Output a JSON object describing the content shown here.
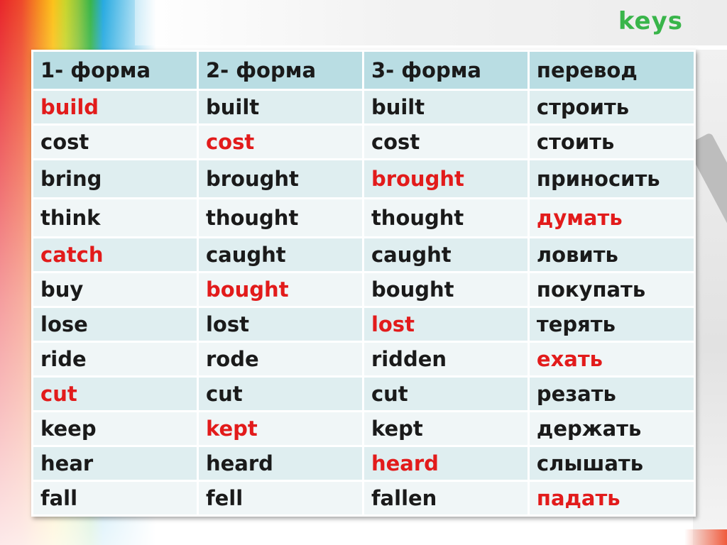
{
  "keys_label": "keys",
  "colors": {
    "highlight": "#e21b1b",
    "keys_label": "#39b54a",
    "header_bg": "#b9dde3"
  },
  "table": {
    "headers": [
      "1- форма",
      "2- форма",
      "3- форма",
      "перевод"
    ],
    "rows": [
      {
        "cells": [
          "build",
          "built",
          "built",
          "строить"
        ],
        "highlight_col": 0
      },
      {
        "cells": [
          "cost",
          "cost",
          "cost",
          "стоить"
        ],
        "highlight_col": 1
      },
      {
        "cells": [
          "bring",
          "brought",
          "brought",
          "приносить"
        ],
        "highlight_col": 2
      },
      {
        "cells": [
          "think",
          "thought",
          "thought",
          "думать"
        ],
        "highlight_col": 3
      },
      {
        "cells": [
          "catch",
          "caught",
          "caught",
          "ловить"
        ],
        "highlight_col": 0
      },
      {
        "cells": [
          "buy",
          "bought",
          "bought",
          "покупать"
        ],
        "highlight_col": 1
      },
      {
        "cells": [
          "lose",
          "lost",
          "lost",
          "терять"
        ],
        "highlight_col": 2
      },
      {
        "cells": [
          "ride",
          "rode",
          "ridden",
          "ехать"
        ],
        "highlight_col": 3
      },
      {
        "cells": [
          "cut",
          "cut",
          "cut",
          "резать"
        ],
        "highlight_col": 0
      },
      {
        "cells": [
          "keep",
          "kept",
          "kept",
          "держать"
        ],
        "highlight_col": 1
      },
      {
        "cells": [
          "hear",
          "heard",
          "heard",
          "слышать"
        ],
        "highlight_col": 2
      },
      {
        "cells": [
          "fall",
          "fell",
          "fallen",
          "падать"
        ],
        "highlight_col": 3
      }
    ]
  }
}
